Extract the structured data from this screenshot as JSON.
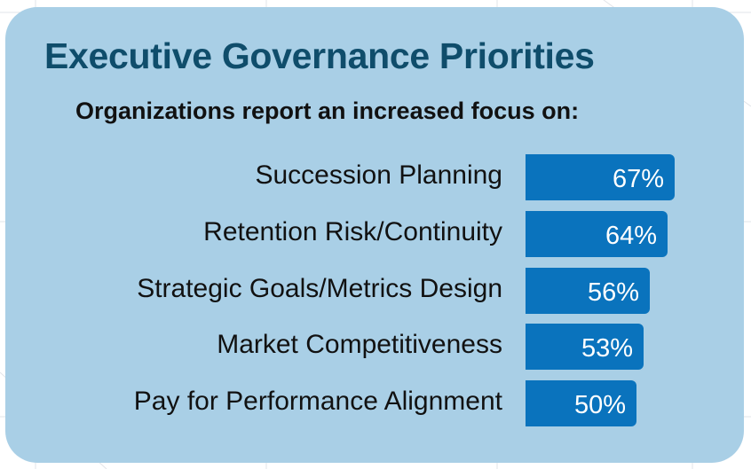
{
  "chart_data": {
    "type": "bar",
    "title": "Executive Governance Priorities",
    "subtitle": "Organizations report an increased focus on:",
    "orientation": "horizontal",
    "categories": [
      "Succession Planning",
      "Retention Risk/Continuity",
      "Strategic Goals/Metrics Design",
      "Market Competitiveness",
      "Pay for Performance Alignment"
    ],
    "values": [
      67,
      64,
      56,
      53,
      50
    ],
    "value_labels": [
      "67%",
      "64%",
      "56%",
      "53%",
      "50%"
    ],
    "unit": "%",
    "bar_color": "#0a73bd",
    "grid": false,
    "legend": "none"
  },
  "colors": {
    "card_background": "#a9cfe6",
    "title": "#0f4d6b",
    "bar": "#0a73bd"
  }
}
